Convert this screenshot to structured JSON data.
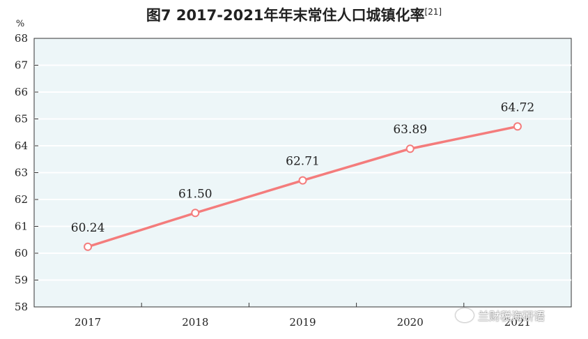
{
  "title": "图7   2017-2021年年末常住人口城镇化率",
  "title_ref": "[21]",
  "unit": "%",
  "watermark": "兰财税海研语",
  "colors": {
    "line": "#f47c7c",
    "plot_bg": "#edf6f8",
    "grid": "#ffffff",
    "axis": "#333333"
  },
  "chart_data": {
    "type": "line",
    "title": "2017-2021年年末常住人口城镇化率",
    "categories": [
      "2017",
      "2018",
      "2019",
      "2020",
      "2021"
    ],
    "values": [
      60.24,
      61.5,
      62.71,
      63.89,
      64.72
    ],
    "value_labels": [
      "60.24",
      "61.50",
      "62.71",
      "63.89",
      "64.72"
    ],
    "ylabel": "%",
    "ylim": [
      58,
      68
    ],
    "yticks": [
      "58",
      "59",
      "60",
      "61",
      "62",
      "63",
      "64",
      "65",
      "66",
      "67",
      "68"
    ],
    "grid": true
  }
}
